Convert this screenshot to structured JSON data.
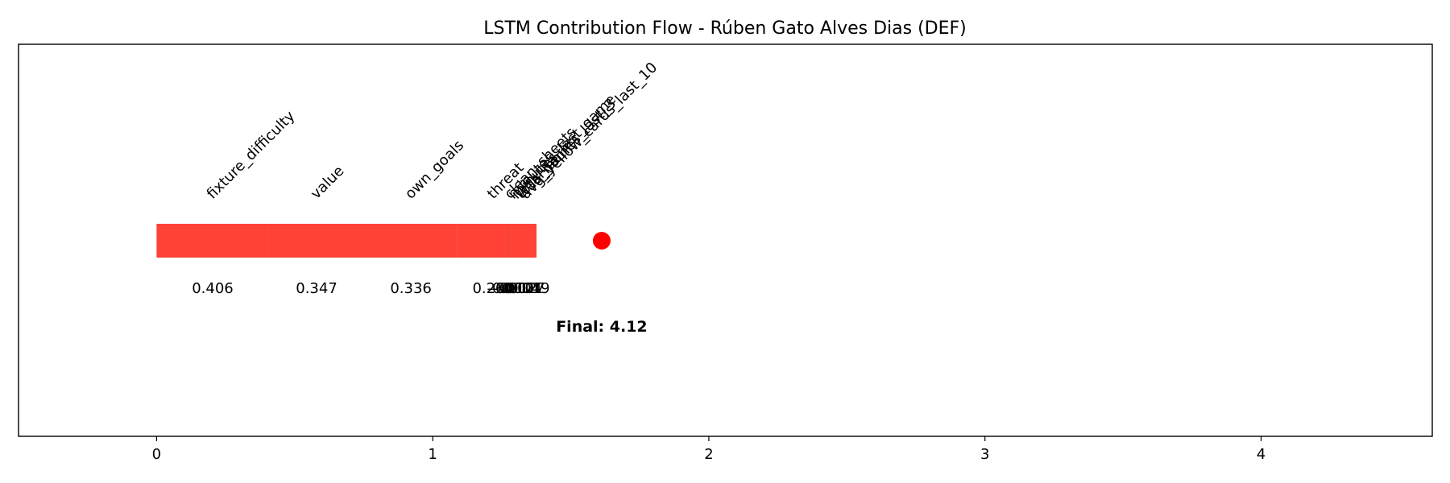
{
  "chart_data": {
    "type": "bar",
    "title": "LSTM Contribution Flow - Rúben Gato Alves Dias (DEF)",
    "xlabel": "",
    "ylabel": "",
    "xlim": [
      -0.5,
      4.62
    ],
    "xticks": [
      0,
      1,
      2,
      3,
      4
    ],
    "grid": false,
    "legend": "none",
    "colors": {
      "positive": "#ff4136",
      "negative": "#0074d9",
      "marker": "#ff0000"
    },
    "segments": [
      {
        "feature": "fixture_difficulty",
        "value": 0.406,
        "value_label": "0.406"
      },
      {
        "feature": "value",
        "value": 0.347,
        "value_label": "0.347"
      },
      {
        "feature": "own_goals",
        "value": 0.336,
        "value_label": "0.336"
      },
      {
        "feature": "threat",
        "value": 0.26,
        "value_label": "0.260"
      },
      {
        "feature": "avg_yellow_cards_last_10",
        "value": -0.019,
        "value_label": "-0.019"
      },
      {
        "feature": "total_points_last_3",
        "value": -0.017,
        "value_label": "-0.017"
      },
      {
        "feature": "minutes_last_game",
        "value": -0.014,
        "value_label": "-0.014"
      },
      {
        "feature": "minutes",
        "value": -0.012,
        "value_label": "-0.012"
      },
      {
        "feature": "clean_sheets",
        "value": -0.012,
        "value_label": "-0.012"
      },
      {
        "feature": "was_home",
        "value": 0.101,
        "value_label": "0.101"
      }
    ],
    "final": {
      "label": "Final: 4.12",
      "marker_x": 1.612
    }
  }
}
